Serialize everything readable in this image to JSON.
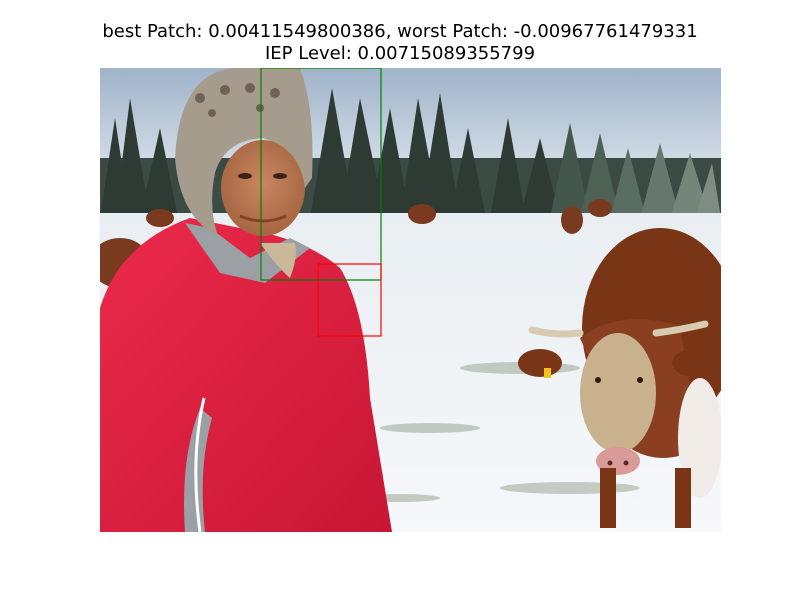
{
  "title": {
    "line1": "best Patch: 0.00411549800386, worst Patch: -0.00967761479331",
    "line2": "IEP Level: 0.00715089355799"
  },
  "image": {
    "description_tag": "photo",
    "scene": "woman in red jacket and knit hat standing in snowy field with grazing cows and pine forest"
  },
  "overlays": {
    "best_patch_color": "#008000",
    "worst_patch_color": "#ff0000"
  }
}
